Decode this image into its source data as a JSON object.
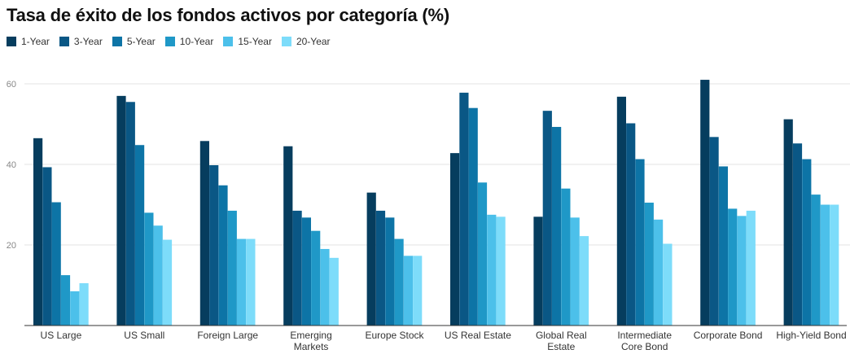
{
  "chart_data": {
    "type": "bar",
    "title": "Tasa de éxito de los fondos activos por categoría (%)",
    "xlabel": "",
    "ylabel": "",
    "ylim": [
      0,
      60
    ],
    "yticks": [
      20,
      40,
      60
    ],
    "grid": true,
    "legend_position": "top-left",
    "categories": [
      [
        "US Large"
      ],
      [
        "US Small"
      ],
      [
        "Foreign Large"
      ],
      [
        "Emerging",
        "Markets"
      ],
      [
        "Europe Stock"
      ],
      [
        "US Real Estate"
      ],
      [
        "Global Real",
        "Estate"
      ],
      [
        "Intermediate",
        "Core Bond"
      ],
      [
        "Corporate Bond"
      ],
      [
        "High-Yield Bond"
      ]
    ],
    "series": [
      {
        "name": "1-Year",
        "color": "#063d5e",
        "values": [
          46.5,
          57.0,
          45.8,
          44.5,
          33.0,
          42.8,
          27.0,
          56.8,
          61.0,
          51.2
        ]
      },
      {
        "name": "3-Year",
        "color": "#0a5785",
        "values": [
          39.3,
          55.5,
          39.8,
          28.5,
          28.5,
          57.8,
          53.3,
          50.2,
          46.8,
          45.2
        ]
      },
      {
        "name": "5-Year",
        "color": "#0d74a6",
        "values": [
          30.6,
          44.8,
          34.8,
          26.8,
          26.8,
          54.0,
          49.3,
          41.3,
          39.5,
          41.3
        ]
      },
      {
        "name": "10-Year",
        "color": "#1f98c7",
        "values": [
          12.5,
          28.0,
          28.5,
          23.5,
          21.5,
          35.5,
          34.0,
          30.5,
          29.0,
          32.5
        ]
      },
      {
        "name": "15-Year",
        "color": "#4cc0ea",
        "values": [
          8.5,
          24.8,
          21.5,
          19.0,
          17.3,
          27.5,
          26.8,
          26.3,
          27.2,
          30.0
        ]
      },
      {
        "name": "20-Year",
        "color": "#7ddcfa",
        "values": [
          10.5,
          21.3,
          21.5,
          16.8,
          17.3,
          27.0,
          22.2,
          20.3,
          28.5,
          30.0
        ]
      }
    ]
  }
}
